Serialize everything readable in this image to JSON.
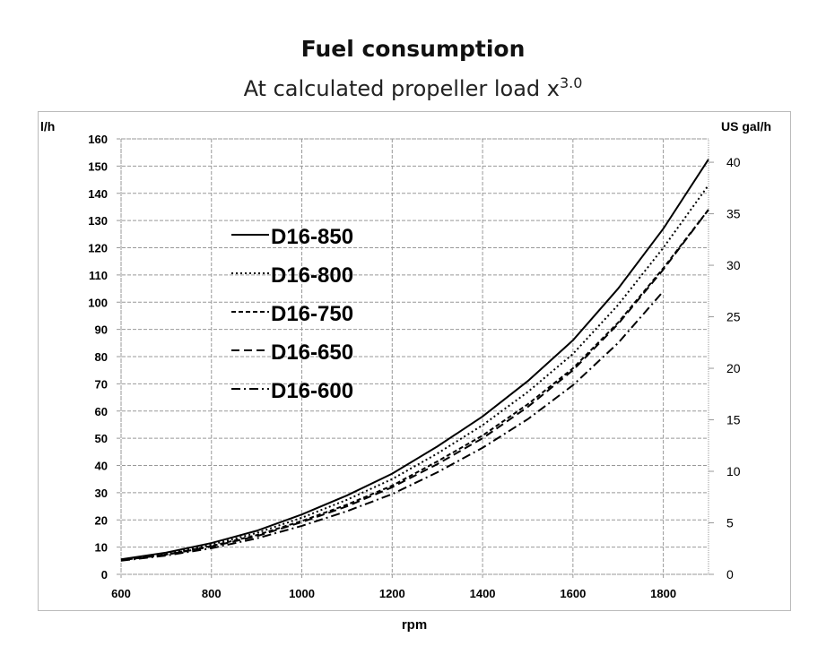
{
  "chart_data": {
    "type": "line",
    "title": "Fuel consumption",
    "subtitle": "At calculated propeller load x",
    "subtitle_exponent": "3.0",
    "xlabel": "rpm",
    "ylabel": "l/h",
    "y2label": "US gal/h",
    "xlim": [
      600,
      1900
    ],
    "ylim": [
      0,
      160
    ],
    "y2lim": [
      0,
      42.27
    ],
    "xticks": [
      600,
      800,
      1000,
      1200,
      1400,
      1600,
      1800
    ],
    "yticks": [
      0,
      10,
      20,
      30,
      40,
      50,
      60,
      70,
      80,
      90,
      100,
      110,
      120,
      130,
      140,
      150,
      160
    ],
    "y2ticks": [
      0,
      5,
      10,
      15,
      20,
      25,
      30,
      35,
      40
    ],
    "grid": true,
    "legend_position": "upper-left inside",
    "series": [
      {
        "name": "D16-850",
        "style": "solid",
        "x": [
          600,
          700,
          800,
          900,
          1000,
          1100,
          1200,
          1300,
          1400,
          1500,
          1600,
          1700,
          1800,
          1900
        ],
        "values": [
          5.5,
          8,
          11.5,
          16,
          22,
          29,
          37,
          47,
          58,
          71,
          86,
          105,
          127,
          152.5
        ]
      },
      {
        "name": "D16-800",
        "style": "dotted",
        "x": [
          600,
          700,
          800,
          900,
          1000,
          1100,
          1200,
          1300,
          1400,
          1500,
          1600,
          1700,
          1800,
          1900
        ],
        "values": [
          5.3,
          7.6,
          10.9,
          15.2,
          20.8,
          27.4,
          35,
          44.4,
          54.8,
          67,
          81,
          99,
          120,
          143
        ]
      },
      {
        "name": "D16-750",
        "style": "short-dash",
        "x": [
          600,
          700,
          800,
          900,
          1000,
          1100,
          1200,
          1300,
          1400,
          1500,
          1600,
          1700,
          1800,
          1900
        ],
        "values": [
          5.2,
          7.3,
          10.4,
          14.4,
          19.6,
          25.6,
          32.6,
          41.5,
          51,
          62.5,
          75.7,
          92.5,
          112.5,
          134
        ]
      },
      {
        "name": "D16-650",
        "style": "long-dash",
        "x": [
          600,
          700,
          800,
          900,
          1000,
          1100,
          1200,
          1300,
          1400,
          1500,
          1600,
          1700,
          1800,
          1900
        ],
        "values": [
          5.2,
          7.2,
          10.2,
          14,
          19.2,
          25,
          32,
          40.5,
          50,
          61.5,
          75,
          92,
          112,
          134
        ]
      },
      {
        "name": "D16-600",
        "style": "dash-dot",
        "x": [
          600,
          700,
          800,
          900,
          1000,
          1100,
          1200,
          1300,
          1400,
          1500,
          1600,
          1700,
          1800
        ],
        "values": [
          5,
          6.9,
          9.6,
          13.2,
          17.8,
          23.2,
          29.5,
          37.5,
          46.5,
          57,
          69.5,
          85,
          104
        ]
      }
    ]
  }
}
